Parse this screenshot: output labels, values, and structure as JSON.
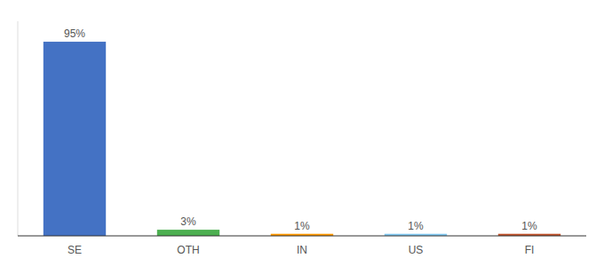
{
  "chart_data": {
    "type": "bar",
    "categories": [
      "SE",
      "OTH",
      "IN",
      "US",
      "FI"
    ],
    "values": [
      95,
      3,
      1,
      1,
      1
    ],
    "value_labels": [
      "95%",
      "3%",
      "1%",
      "1%",
      "1%"
    ],
    "colors": [
      "#4472c4",
      "#4caf50",
      "#ff9800",
      "#80c8f0",
      "#c0522a"
    ],
    "ylim": [
      0,
      105
    ],
    "data_labels": true,
    "tick_labels": "x",
    "grid": false
  }
}
